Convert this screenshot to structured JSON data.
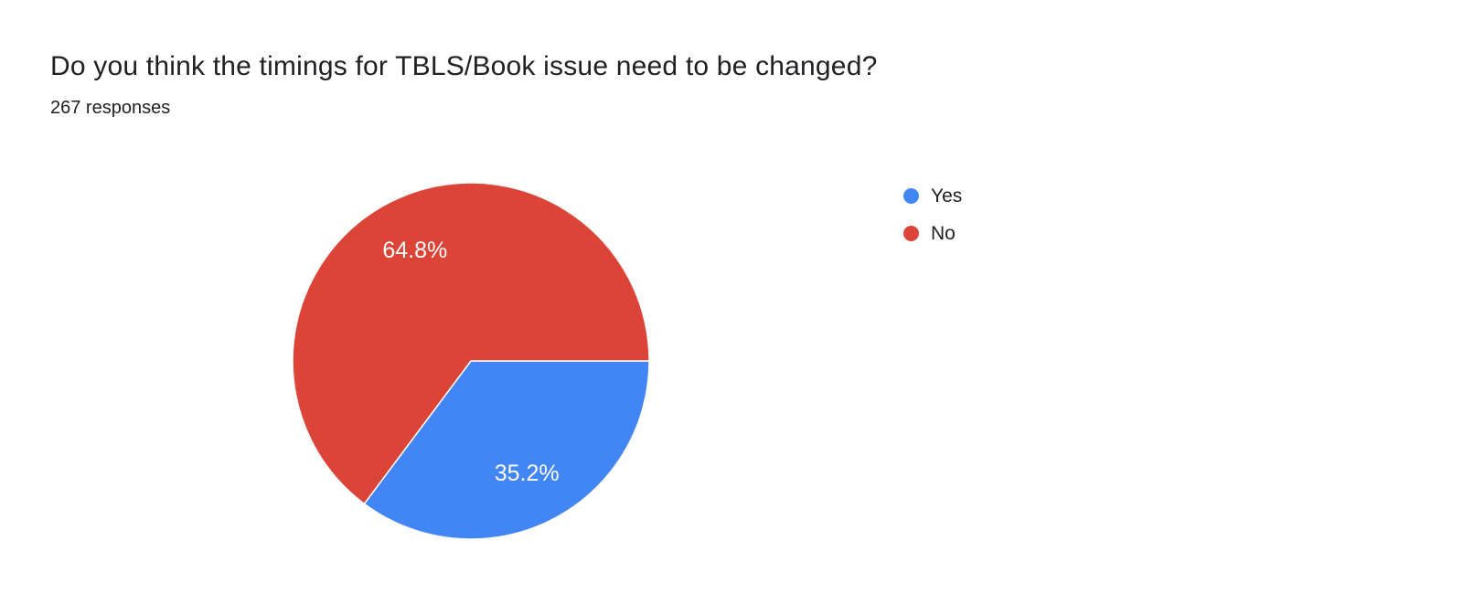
{
  "chart_data": {
    "type": "pie",
    "title": "Do you think the timings for TBLS/Book issue need to be changed?",
    "subtitle": "267 responses",
    "total_responses": 267,
    "legend_position": "right",
    "start_angle_deg": 0,
    "direction": "clockwise",
    "slice_label_color": "#ffffff",
    "slice_border_color": "#ffffff",
    "slices": [
      {
        "label": "Yes",
        "value": 35.2,
        "pct_label": "35.2%",
        "color": "#4285f4"
      },
      {
        "label": "No",
        "value": 64.8,
        "pct_label": "64.8%",
        "color": "#db4437"
      }
    ]
  }
}
